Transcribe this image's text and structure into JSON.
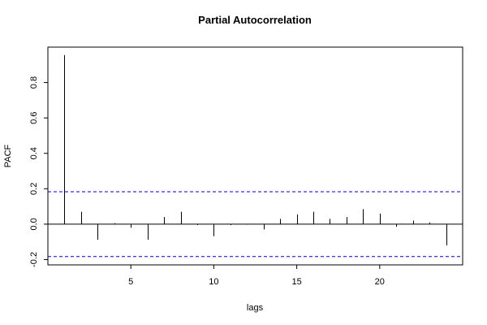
{
  "chart_data": {
    "type": "bar",
    "title": "Partial Autocorrelation",
    "xlabel": "lags",
    "ylabel": "PACF",
    "x": [
      1,
      2,
      3,
      4,
      5,
      6,
      7,
      8,
      9,
      10,
      11,
      12,
      13,
      14,
      15,
      16,
      17,
      18,
      19,
      20,
      21,
      22,
      23,
      24
    ],
    "values": [
      0.955,
      0.07,
      -0.088,
      0.005,
      -0.02,
      -0.088,
      0.04,
      0.07,
      -0.005,
      -0.068,
      -0.005,
      -0.003,
      -0.03,
      0.03,
      0.055,
      0.07,
      0.03,
      0.04,
      0.085,
      0.06,
      -0.015,
      0.02,
      0.01,
      -0.12
    ],
    "xlim": [
      0,
      25
    ],
    "ylim": [
      -0.23,
      1.0
    ],
    "xticks": [
      5,
      10,
      15,
      20
    ],
    "yticks": [
      -0.2,
      0.0,
      0.2,
      0.4,
      0.6,
      0.8
    ],
    "yticklabels": [
      "-0.2",
      "0.0",
      "0.2",
      "0.4",
      "0.6",
      "0.8"
    ],
    "confidence_bounds": [
      0.183,
      -0.183
    ],
    "grid": false,
    "colors": {
      "bars": "#000000",
      "bounds": "#0000cc",
      "zero_line": "#000000"
    }
  }
}
